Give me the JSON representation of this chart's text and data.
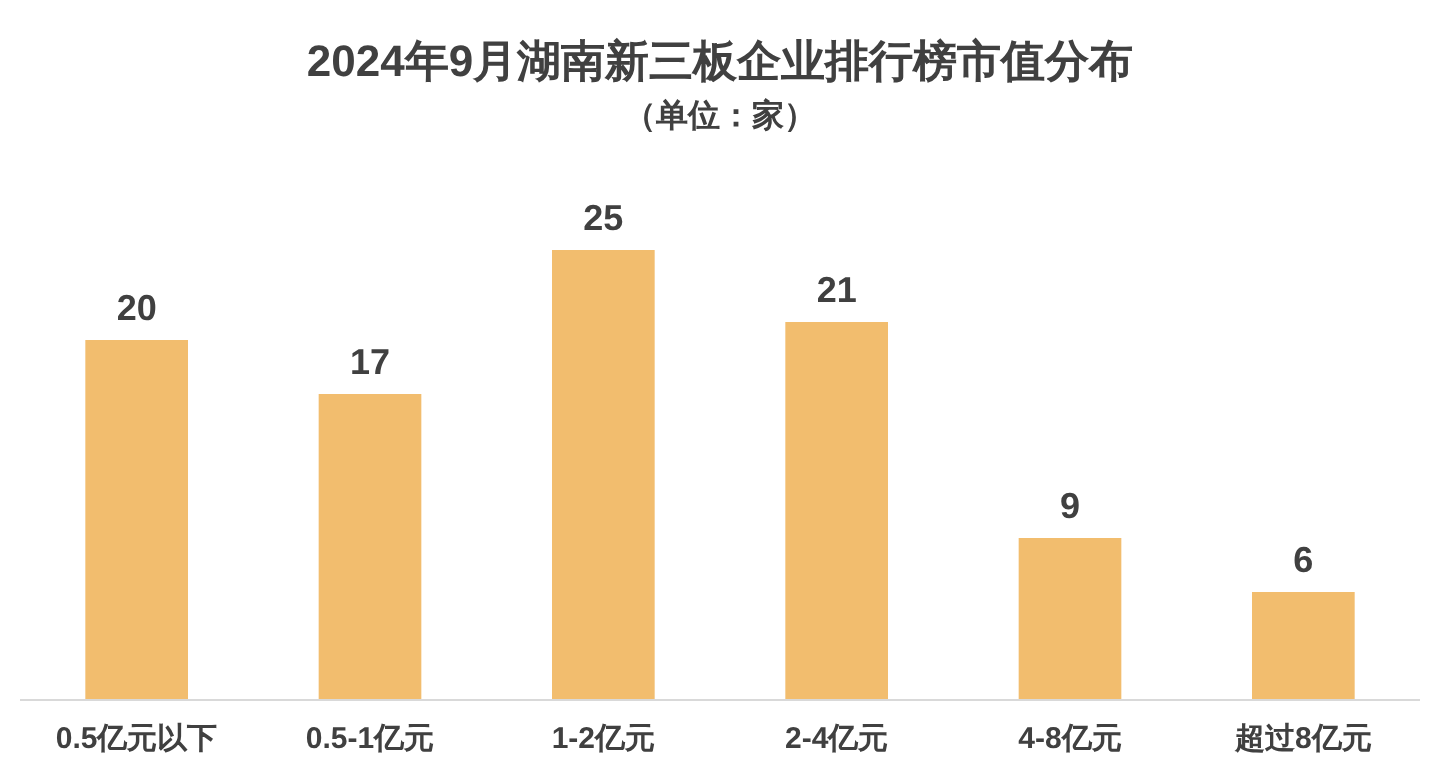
{
  "chart_data": {
    "type": "bar",
    "title": "2024年9月湖南新三板企业排行榜市值分布",
    "subtitle": "（单位：家）",
    "categories": [
      "0.5亿元以下",
      "0.5-1亿元",
      "1-2亿元",
      "2-4亿元",
      "4-8亿元",
      "超过8亿元"
    ],
    "values": [
      20,
      17,
      25,
      21,
      9,
      6
    ],
    "color": "#f2bd6e",
    "data_labels": true
  }
}
